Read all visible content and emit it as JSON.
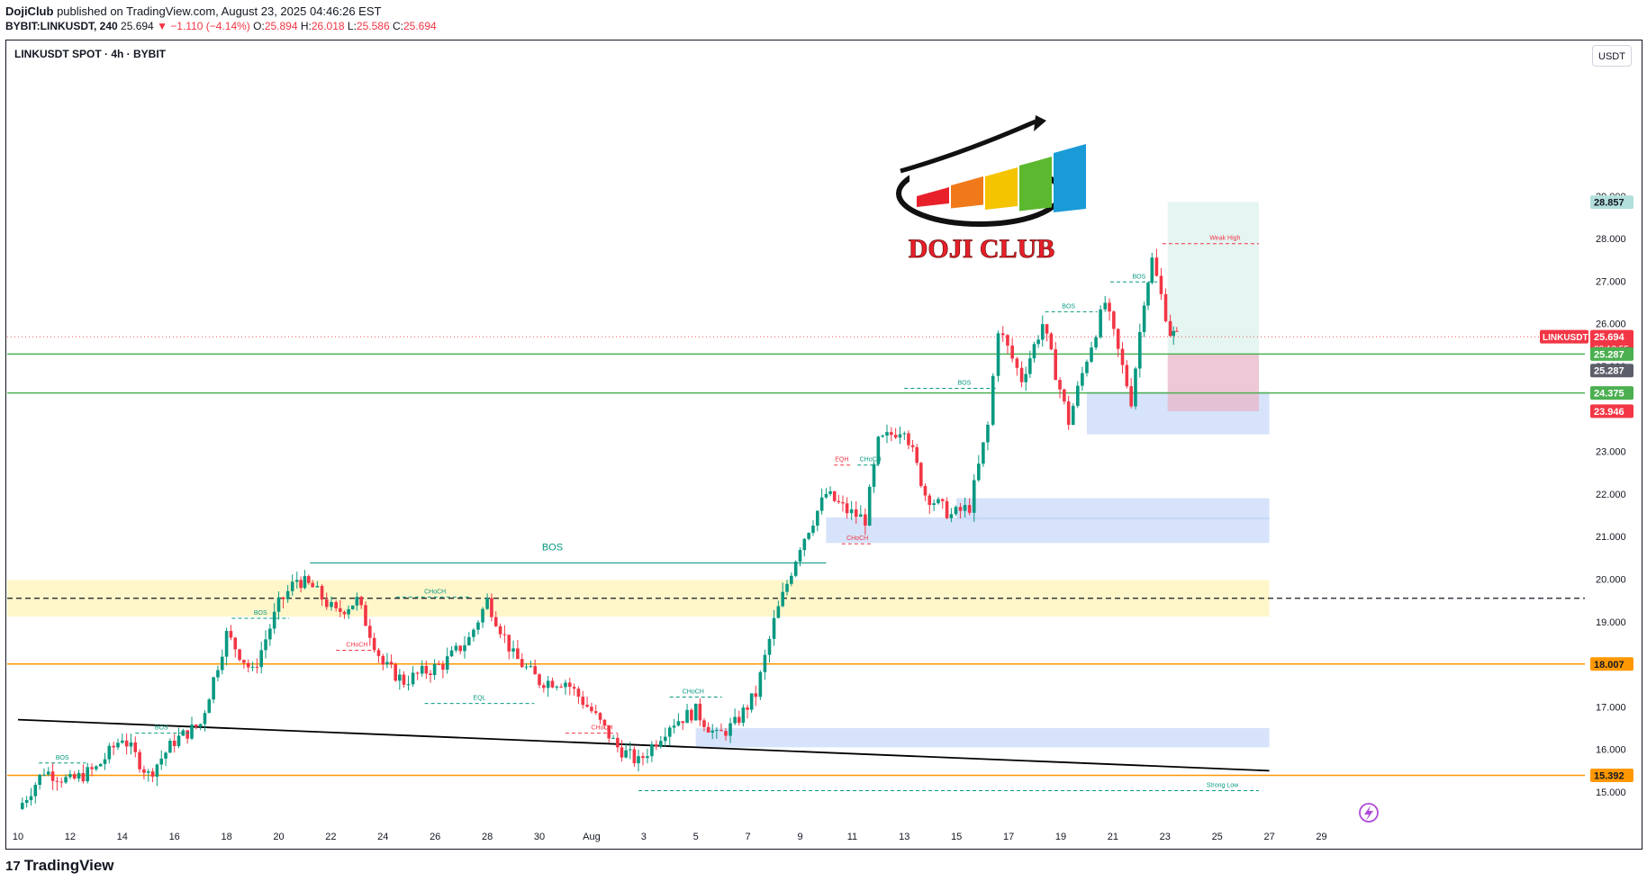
{
  "header": {
    "publisher": "DojiClub",
    "published_text": "published on TradingView.com, August 23, 2025 04:46:26 EST",
    "symbol_line": "BYBIT:LINKUSDT, 240",
    "last_price": "25.694",
    "change": "▼ −1.110 (−4.14%)",
    "o_label": "O:",
    "o_value": "25.894",
    "h_label": "H:",
    "h_value": "26.018",
    "l_label": "L:",
    "l_value": "25.586",
    "c_label": "C:",
    "c_value": "25.694"
  },
  "chart_title": "LINKUSDT SPOT · 4h · BYBIT",
  "unit_button": "USDT",
  "logo": {
    "text": "DOJI CLUB",
    "bar_colors": [
      "#e8202a",
      "#f07a1a",
      "#f5c400",
      "#5cb82e",
      "#1a9bd7"
    ]
  },
  "footer": {
    "brand": "TradingView",
    "mark": "17"
  },
  "colors": {
    "up": "#089981",
    "down": "#f23645",
    "zone_blue": "#bbd0f7",
    "zone_yellow": "#fff3b8",
    "level_green": "#4caf50",
    "level_orange": "#ff9800",
    "tp_zone": "#dff3ee",
    "sl_zone": "#e8b6c8"
  },
  "chart_data": {
    "type": "candlestick",
    "timeframe": "4h",
    "y_ticks": [
      "15.000",
      "16.000",
      "17.000",
      "18.000",
      "19.000",
      "20.000",
      "21.000",
      "22.000",
      "23.000",
      "24.000",
      "25.000",
      "26.000",
      "27.000",
      "28.000",
      "29.000"
    ],
    "ylim": [
      14.6,
      29.6
    ],
    "x_ticks": [
      "10",
      "12",
      "14",
      "16",
      "18",
      "20",
      "22",
      "24",
      "26",
      "28",
      "30",
      "Aug",
      "3",
      "5",
      "7",
      "9",
      "11",
      "13",
      "15",
      "17",
      "19",
      "21",
      "23",
      "25",
      "27",
      "29"
    ],
    "anchors": [
      {
        "d": 10,
        "p": 14.6
      },
      {
        "d": 11,
        "p": 15.5
      },
      {
        "d": 12,
        "p": 15.25
      },
      {
        "d": 13,
        "p": 15.55
      },
      {
        "d": 14,
        "p": 16.3
      },
      {
        "d": 15,
        "p": 15.4
      },
      {
        "d": 16,
        "p": 16.2
      },
      {
        "d": 17,
        "p": 16.6
      },
      {
        "d": 18,
        "p": 18.7
      },
      {
        "d": 19,
        "p": 17.8
      },
      {
        "d": 20,
        "p": 19.4
      },
      {
        "d": 20.7,
        "p": 20.0
      },
      {
        "d": 21.3,
        "p": 19.8
      },
      {
        "d": 22.2,
        "p": 19.2
      },
      {
        "d": 23,
        "p": 19.5
      },
      {
        "d": 24,
        "p": 18.0
      },
      {
        "d": 24.8,
        "p": 17.6
      },
      {
        "d": 25.5,
        "p": 17.8
      },
      {
        "d": 26.3,
        "p": 18.0
      },
      {
        "d": 27.3,
        "p": 18.6
      },
      {
        "d": 28,
        "p": 19.5
      },
      {
        "d": 29,
        "p": 18.2
      },
      {
        "d": 30,
        "p": 17.6
      },
      {
        "d": 31,
        "p": 17.6
      },
      {
        "d": 32,
        "p": 16.9
      },
      {
        "d": 33,
        "p": 16.05
      },
      {
        "d": 33.8,
        "p": 15.7
      },
      {
        "d": 35,
        "p": 16.6
      },
      {
        "d": 36,
        "p": 16.9
      },
      {
        "d": 36.8,
        "p": 16.3
      },
      {
        "d": 37.5,
        "p": 16.6
      },
      {
        "d": 38.3,
        "p": 17.3
      },
      {
        "d": 39,
        "p": 19.0
      },
      {
        "d": 40,
        "p": 20.8
      },
      {
        "d": 41,
        "p": 22.0
      },
      {
        "d": 41.8,
        "p": 21.6
      },
      {
        "d": 42.5,
        "p": 21.4
      },
      {
        "d": 43,
        "p": 23.2
      },
      {
        "d": 44,
        "p": 23.6
      },
      {
        "d": 44.8,
        "p": 22.0
      },
      {
        "d": 45.8,
        "p": 21.5
      },
      {
        "d": 46.5,
        "p": 21.7
      },
      {
        "d": 47.2,
        "p": 23.6
      },
      {
        "d": 47.6,
        "p": 25.9
      },
      {
        "d": 48.5,
        "p": 24.7
      },
      {
        "d": 49.3,
        "p": 26.0
      },
      {
        "d": 50.3,
        "p": 23.7
      },
      {
        "d": 51.0,
        "p": 25.2
      },
      {
        "d": 51.7,
        "p": 26.5
      },
      {
        "d": 52.7,
        "p": 24.2
      },
      {
        "d": 53.2,
        "p": 26.6
      },
      {
        "d": 53.5,
        "p": 27.5
      },
      {
        "d": 54.2,
        "p": 25.8
      },
      {
        "d": 54.45,
        "p": 25.694
      }
    ],
    "zones": [
      {
        "type": "demand",
        "from_date": 51.0,
        "to_date": 58.0,
        "low": 23.4,
        "high": 24.4
      },
      {
        "type": "demand",
        "from_date": 46.0,
        "to_date": 58.0,
        "low": 21.4,
        "high": 21.9
      },
      {
        "type": "demand",
        "from_date": 41.0,
        "to_date": 58.0,
        "low": 20.85,
        "high": 21.45
      },
      {
        "type": "demand",
        "from_date": 36.0,
        "to_date": 58.0,
        "low": 16.05,
        "high": 16.5
      },
      {
        "type": "premium",
        "from_date": 10.0,
        "to_date": 58.0,
        "low": 19.12,
        "high": 19.98
      }
    ],
    "levels": [
      {
        "value": 25.287,
        "label": "25.287",
        "color": "#4caf50"
      },
      {
        "value": 24.375,
        "label": "24.375",
        "color": "#4caf50"
      },
      {
        "value": 18.007,
        "label": "18.007",
        "color": "#ff9800"
      },
      {
        "value": 15.392,
        "label": "15.392",
        "color": "#ff9800"
      }
    ],
    "midline": 19.55,
    "trendline": [
      {
        "d": 10,
        "p": 16.7
      },
      {
        "d": 58,
        "p": 15.5
      }
    ],
    "position": {
      "entry": 25.287,
      "stop": 23.946,
      "target": 28.857,
      "from_date": 54.1,
      "to_date": 57.6
    },
    "price_tags": [
      {
        "value": 28.857,
        "label": "28.857",
        "kind": "tp"
      },
      {
        "value": 25.694,
        "label": "25.694",
        "kind": "last",
        "sub": "02:13:55",
        "symbol": "LINKUSDT"
      },
      {
        "value": 25.287,
        "label": "25.287",
        "kind": "green"
      },
      {
        "value": 24.9,
        "label": "25.287",
        "kind": "grey"
      },
      {
        "value": 24.375,
        "label": "24.375",
        "kind": "green"
      },
      {
        "value": 23.946,
        "label": "23.946",
        "kind": "red"
      },
      {
        "value": 18.007,
        "label": "18.007",
        "kind": "orange"
      },
      {
        "value": 15.392,
        "label": "15.392",
        "kind": "orange"
      }
    ],
    "structure_labels": [
      {
        "text": "BOS",
        "d": 11.7,
        "p": 15.85,
        "color": "#089981",
        "line_from": 10.8,
        "line_to": 12.6
      },
      {
        "text": "BOS",
        "d": 15.5,
        "p": 16.55,
        "color": "#089981",
        "line_from": 14.5,
        "line_to": 16.6
      },
      {
        "text": "BOS",
        "d": 19.3,
        "p": 19.25,
        "color": "#089981",
        "line_from": 18.2,
        "line_to": 20.4
      },
      {
        "text": "CHoCH",
        "d": 23.0,
        "p": 18.5,
        "color": "#f23645",
        "line_from": 22.2,
        "line_to": 23.7
      },
      {
        "text": "CHoCH",
        "d": 26.0,
        "p": 19.75,
        "color": "#089981",
        "line_from": 24.5,
        "line_to": 27.3
      },
      {
        "text": "EQL",
        "d": 27.7,
        "p": 17.25,
        "color": "#089981",
        "line_from": 25.6,
        "line_to": 29.8
      },
      {
        "text": "CHoCH",
        "d": 32.4,
        "p": 16.55,
        "color": "#f23645",
        "line_from": 31.0,
        "line_to": 33.0
      },
      {
        "text": "CHoCH",
        "d": 35.9,
        "p": 17.4,
        "color": "#089981",
        "line_from": 35.0,
        "line_to": 37.0
      },
      {
        "text": "BOS",
        "d": 30.5,
        "p": 20.55,
        "color": "#089981",
        "line_from": 21.2,
        "line_to": 41.0
      },
      {
        "text": "EQH",
        "d": 41.6,
        "p": 22.85,
        "color": "#f23645",
        "line_from": 41.3,
        "line_to": 42.0
      },
      {
        "text": "CHoCH",
        "d": 42.7,
        "p": 22.85,
        "color": "#089981",
        "line_from": 42.2,
        "line_to": 43.0
      },
      {
        "text": "CHoCH",
        "d": 42.2,
        "p": 21.0,
        "color": "#f23645",
        "line_from": 41.6,
        "line_to": 42.8
      },
      {
        "text": "BOS",
        "d": 46.3,
        "p": 24.65,
        "color": "#089981",
        "line_from": 44.0,
        "line_to": 47.5
      },
      {
        "text": "BOS",
        "d": 50.3,
        "p": 26.45,
        "color": "#089981",
        "line_from": 49.4,
        "line_to": 51.4
      },
      {
        "text": "BOS",
        "d": 53.0,
        "p": 27.15,
        "color": "#089981",
        "line_from": 51.9,
        "line_to": 53.7
      },
      {
        "text": "Weak High",
        "d": 56.3,
        "p": 28.05,
        "color": "#f23645",
        "line_from": 53.9,
        "line_to": 57.6
      },
      {
        "text": "Strong Low",
        "d": 56.2,
        "p": 15.2,
        "color": "#089981",
        "line_from": 33.8,
        "line_to": 57.6
      }
    ]
  }
}
